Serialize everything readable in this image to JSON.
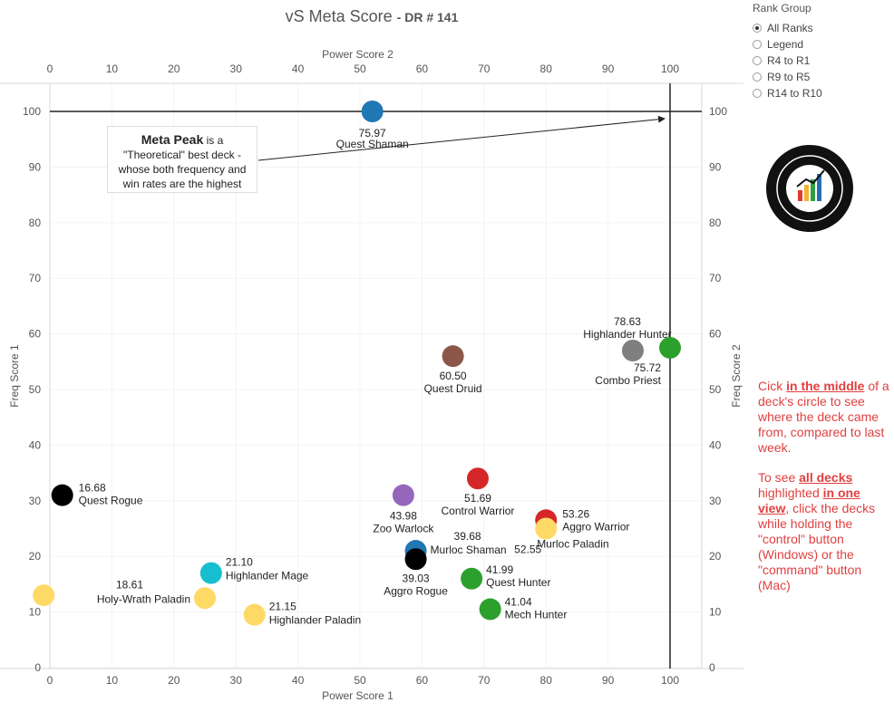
{
  "header": {
    "title": "vS Meta Score",
    "subtitle": "- DR # 141"
  },
  "legend": {
    "title": "Rank Group",
    "options": [
      "All Ranks",
      "Legend",
      "R4 to R1",
      "R9 to R5",
      "R14 to R10"
    ],
    "selected": "All Ranks"
  },
  "annotation": {
    "bold": "Meta Peak",
    "line1": " is a",
    "line2": "\"Theoretical\" best deck -",
    "line3": "whose both frequency and",
    "line4": "win rates are the highest"
  },
  "side_note": {
    "p1_a": "Cick ",
    "p1_b": "in the middle",
    "p1_c": " of a deck's circle to see where the deck came from, compared to last week.",
    "p2_a": "To see ",
    "p2_b": "all decks ",
    "p2_c": " highlighted ",
    "p2_d": "in one view",
    "p2_e": ", click the decks while holding the \"control\" button (Windows) or the \"command\" button (Mac)"
  },
  "colors": {
    "accent_note": "#e04040",
    "axis": "#333333",
    "grid": "#e6e6e6"
  },
  "chart_data": {
    "type": "scatter",
    "xlabel": "Power Score 1",
    "x2label": "Power Score 2",
    "ylabel": "Freq Score 1",
    "y2label": "Freq Score 2",
    "xlim": [
      0,
      105
    ],
    "ylim": [
      0,
      105
    ],
    "xticks": [
      0,
      10,
      20,
      30,
      40,
      50,
      60,
      70,
      80,
      90,
      100
    ],
    "yticks": [
      0,
      10,
      20,
      30,
      40,
      50,
      60,
      70,
      80,
      90,
      100
    ],
    "meta_peak": {
      "x": 100,
      "y": 100
    },
    "points": [
      {
        "name": "Quest Shaman",
        "score": "75.97",
        "x": 52,
        "y": 100,
        "color": "#1f77b4"
      },
      {
        "name": "Highlander Hunter",
        "score": "78.63",
        "x": 94,
        "y": 57,
        "color": "#7f7f7f"
      },
      {
        "name": "Combo Priest",
        "score": "75.72",
        "x": 100,
        "y": 57.5,
        "color": "#2ca02c"
      },
      {
        "name": "Quest Druid",
        "score": "60.50",
        "x": 65,
        "y": 56,
        "color": "#8c564b"
      },
      {
        "name": "Control Warrior",
        "score": "51.69",
        "x": 69,
        "y": 34,
        "color": "#d62728"
      },
      {
        "name": "Quest Rogue",
        "score": "16.68",
        "x": 2,
        "y": 31,
        "color": "#000000"
      },
      {
        "name": "Zoo Warlock",
        "score": "43.98",
        "x": 57,
        "y": 31,
        "color": "#9467bd"
      },
      {
        "name": "Aggro Warrior",
        "score": "53.26",
        "x": 80,
        "y": 26.5,
        "color": "#d62728"
      },
      {
        "name": "Murloc Paladin",
        "score": "52.55",
        "x": 80,
        "y": 25,
        "color": "#ffd966"
      },
      {
        "name": "Murloc Shaman",
        "score": "39.68",
        "x": 59,
        "y": 21,
        "color": "#1f77b4"
      },
      {
        "name": "Aggro Rogue",
        "score": "39.03",
        "x": 59,
        "y": 19.5,
        "color": "#000000"
      },
      {
        "name": "Quest Hunter",
        "score": "41.99",
        "x": 68,
        "y": 16,
        "color": "#2ca02c"
      },
      {
        "name": "Highlander Mage",
        "score": "21.10",
        "x": 26,
        "y": 17,
        "color": "#17becf"
      },
      {
        "name": "Holy-Wrath Paladin",
        "score": "18.61",
        "x": 25,
        "y": 12.5,
        "color": "#ffd966"
      },
      {
        "name": "Mech Hunter",
        "score": "41.04",
        "x": 71,
        "y": 10.5,
        "color": "#2ca02c"
      },
      {
        "name": "Highlander Paladin",
        "score": "21.15",
        "x": 33,
        "y": 9.5,
        "color": "#ffd966"
      },
      {
        "name": "",
        "score": "",
        "x": -1,
        "y": 13,
        "color": "#ffd966"
      }
    ]
  }
}
